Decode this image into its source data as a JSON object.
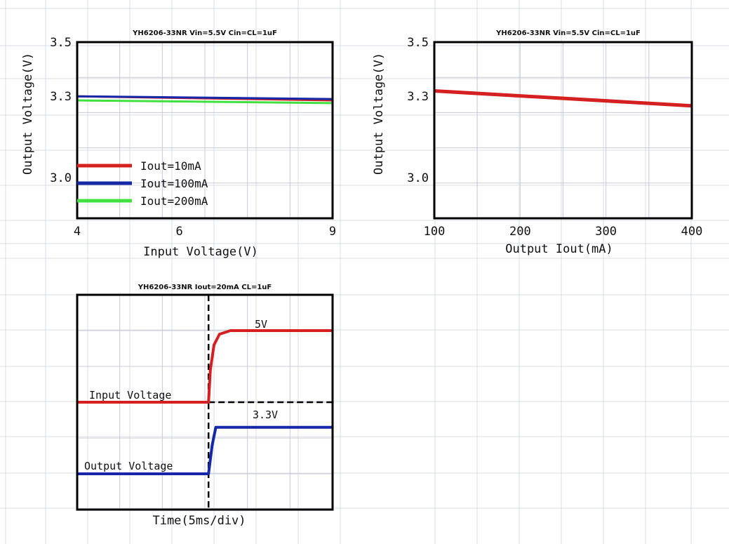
{
  "colors": {
    "red": "#d42020",
    "blue": "#1428a8",
    "green": "#40e040",
    "sheet_grid": "#d8dce4",
    "plot_grid": "#c9c9d6",
    "frame": "#000000"
  },
  "chart_data": [
    {
      "type": "line",
      "title": "YH6206-33NR Vin=5.5V Cin=CL=1uF",
      "xlabel": "Input Voltage(V)",
      "ylabel": "Output Voltage(V)",
      "xlim": [
        4,
        9
      ],
      "ylim": [
        2.85,
        3.5
      ],
      "xtick_values": [
        4,
        6,
        9
      ],
      "xtick_labels": [
        "4",
        "6",
        "9"
      ],
      "ytick_values": [
        3.5,
        3.3,
        3.0
      ],
      "ytick_labels": [
        "3.5",
        "3.3",
        "3.0"
      ],
      "legend_position": "lower-left",
      "grid": true,
      "series": [
        {
          "name": "Iout=10mA",
          "color": "red",
          "x": [
            4,
            9
          ],
          "y": [
            3.3,
            3.285
          ]
        },
        {
          "name": "Iout=100mA",
          "color": "blue",
          "x": [
            4,
            9
          ],
          "y": [
            3.3,
            3.29
          ]
        },
        {
          "name": "Iout=200mA",
          "color": "green",
          "x": [
            4,
            9
          ],
          "y": [
            3.285,
            3.275
          ]
        }
      ]
    },
    {
      "type": "line",
      "title": "YH6206-33NR Vin=5.5V Cin=CL=1uF",
      "xlabel": "Output Iout(mA)",
      "ylabel": "Output Voltage(V)",
      "xlim": [
        100,
        400
      ],
      "ylim": [
        2.85,
        3.5
      ],
      "xtick_values": [
        100,
        200,
        300,
        400
      ],
      "xtick_labels": [
        "100",
        "200",
        "300",
        "400"
      ],
      "ytick_values": [
        3.5,
        3.3,
        3.0
      ],
      "ytick_labels": [
        "3.5",
        "3.3",
        "3.0"
      ],
      "grid": true,
      "series": [
        {
          "color": "red",
          "x": [
            100,
            400
          ],
          "y": [
            3.32,
            3.265
          ]
        }
      ]
    },
    {
      "type": "line",
      "title": "YH6206-33NR Iout=20mA CL=1uF",
      "xlabel": "Time(5ms/div)",
      "ylabel": "",
      "grid": true,
      "xlim": [
        0,
        7
      ],
      "ylim": [
        0,
        6
      ],
      "event_marker_x": 3.6,
      "series": [
        {
          "label": "Input Voltage",
          "level_label": "5V",
          "color": "red",
          "x": [
            0,
            3.6,
            3.65,
            3.75,
            3.9,
            4.2,
            7
          ],
          "y": [
            3.0,
            3.0,
            3.9,
            4.6,
            4.9,
            5.0,
            5.0
          ]
        },
        {
          "label": "Output Voltage",
          "level_label": "3.3V",
          "color": "blue",
          "x": [
            0,
            3.6,
            3.7,
            3.8,
            7
          ],
          "y": [
            1.0,
            1.0,
            1.8,
            2.3,
            2.3
          ]
        }
      ]
    }
  ]
}
